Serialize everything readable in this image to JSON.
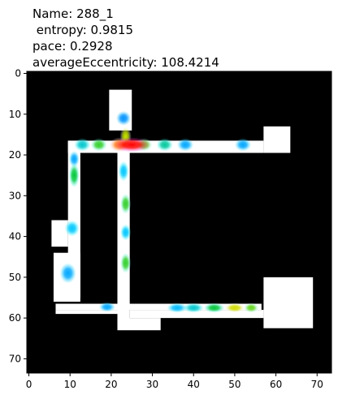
{
  "chart_data": {
    "type": "heatmap",
    "title_lines": [
      "Name: 288_1",
      " entropy: 0.9815",
      "pace: 0.2928",
      "averageEccentricity: 108.4214"
    ],
    "xlabel": "",
    "ylabel": "",
    "xlim": [
      -0.5,
      73.5
    ],
    "ylim": [
      73.5,
      -0.5
    ],
    "y_inverted": true,
    "grid": false,
    "x_ticks": [
      0,
      10,
      20,
      30,
      40,
      50,
      60,
      70
    ],
    "y_ticks": [
      0,
      10,
      20,
      30,
      40,
      50,
      60,
      70
    ],
    "background_color": "#000000",
    "path_color": "#ffffff",
    "path_regions": [
      {
        "x0": 19.5,
        "x1": 25,
        "y0": 4,
        "y1": 14
      },
      {
        "x0": 9.5,
        "x1": 57,
        "y0": 16.5,
        "y1": 19.5
      },
      {
        "x0": 57,
        "x1": 63.5,
        "y0": 13,
        "y1": 19.5
      },
      {
        "x0": 9.5,
        "x1": 12.5,
        "y0": 16.5,
        "y1": 55
      },
      {
        "x0": 5.5,
        "x1": 9.5,
        "y0": 36,
        "y1": 42.5
      },
      {
        "x0": 6,
        "x1": 12.5,
        "y0": 44,
        "y1": 56
      },
      {
        "x0": 21.5,
        "x1": 24.5,
        "y0": 16.5,
        "y1": 62
      },
      {
        "x0": 6.5,
        "x1": 56.5,
        "y0": 56.5,
        "y1": 58
      },
      {
        "x0": 6.5,
        "x1": 21.5,
        "y0": 58,
        "y1": 59
      },
      {
        "x0": 24.5,
        "x1": 57,
        "y0": 58,
        "y1": 60
      },
      {
        "x0": 21.5,
        "x1": 32,
        "y0": 60,
        "y1": 63
      },
      {
        "x0": 57,
        "x1": 69,
        "y0": 50,
        "y1": 62.5
      }
    ],
    "hotspots": [
      {
        "x": 25,
        "y": 17.5,
        "intensity": 1.0,
        "sx": 4.5,
        "sy": 1.8
      },
      {
        "x": 22,
        "y": 17.5,
        "intensity": 0.85,
        "sx": 2.5,
        "sy": 1.8
      },
      {
        "x": 23.5,
        "y": 15.5,
        "intensity": 0.7,
        "sx": 1.4,
        "sy": 2.5
      },
      {
        "x": 28,
        "y": 17.5,
        "intensity": 0.6,
        "sx": 2.0,
        "sy": 1.6
      },
      {
        "x": 17,
        "y": 17.5,
        "intensity": 0.55,
        "sx": 2.0,
        "sy": 1.6
      },
      {
        "x": 13,
        "y": 17.5,
        "intensity": 0.35,
        "sx": 2.0,
        "sy": 1.6
      },
      {
        "x": 33,
        "y": 17.5,
        "intensity": 0.4,
        "sx": 2.0,
        "sy": 1.6
      },
      {
        "x": 38,
        "y": 17.5,
        "intensity": 0.25,
        "sx": 2.0,
        "sy": 1.6
      },
      {
        "x": 52,
        "y": 17.5,
        "intensity": 0.25,
        "sx": 2.0,
        "sy": 1.6
      },
      {
        "x": 23,
        "y": 11,
        "intensity": 0.22,
        "sx": 1.8,
        "sy": 1.8
      },
      {
        "x": 23,
        "y": 24,
        "intensity": 0.3,
        "sx": 1.3,
        "sy": 2.5
      },
      {
        "x": 23.5,
        "y": 32,
        "intensity": 0.55,
        "sx": 1.3,
        "sy": 2.5
      },
      {
        "x": 23.5,
        "y": 39,
        "intensity": 0.3,
        "sx": 1.3,
        "sy": 2.0
      },
      {
        "x": 23.5,
        "y": 46.5,
        "intensity": 0.55,
        "sx": 1.3,
        "sy": 2.5
      },
      {
        "x": 11,
        "y": 25,
        "intensity": 0.5,
        "sx": 1.3,
        "sy": 3.0
      },
      {
        "x": 11,
        "y": 21,
        "intensity": 0.25,
        "sx": 1.3,
        "sy": 2.0
      },
      {
        "x": 10.5,
        "y": 38,
        "intensity": 0.3,
        "sx": 1.8,
        "sy": 2.0
      },
      {
        "x": 9.5,
        "y": 49,
        "intensity": 0.25,
        "sx": 2.0,
        "sy": 2.5
      },
      {
        "x": 19,
        "y": 57.3,
        "intensity": 0.25,
        "sx": 2.0,
        "sy": 1.2
      },
      {
        "x": 36,
        "y": 57.5,
        "intensity": 0.28,
        "sx": 2.5,
        "sy": 1.2
      },
      {
        "x": 40,
        "y": 57.5,
        "intensity": 0.35,
        "sx": 2.5,
        "sy": 1.2
      },
      {
        "x": 45,
        "y": 57.5,
        "intensity": 0.5,
        "sx": 2.5,
        "sy": 1.2
      },
      {
        "x": 50,
        "y": 57.5,
        "intensity": 0.72,
        "sx": 2.5,
        "sy": 1.2
      },
      {
        "x": 54,
        "y": 57.5,
        "intensity": 0.6,
        "sx": 1.8,
        "sy": 1.2
      }
    ]
  }
}
